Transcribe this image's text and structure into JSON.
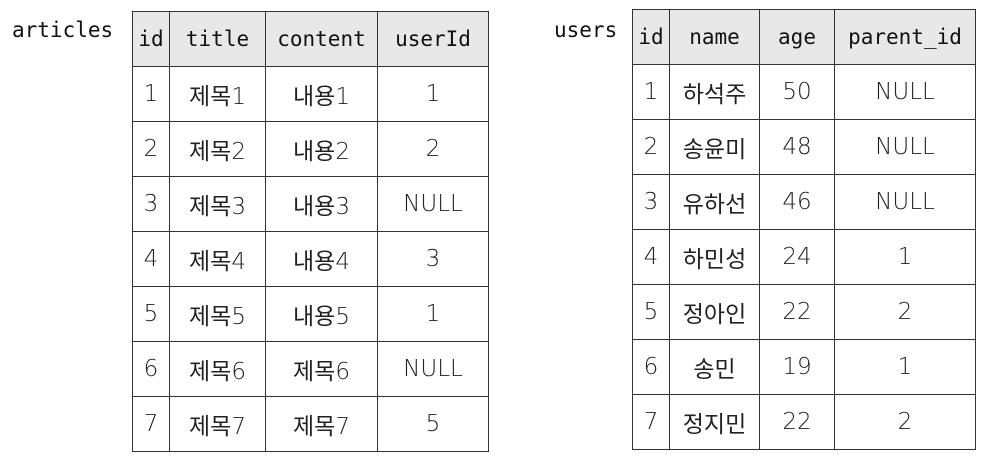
{
  "articles": {
    "name": "articles",
    "columns": [
      "id",
      "title",
      "content",
      "userId"
    ],
    "rows": [
      [
        "1",
        "제목1",
        "내용1",
        "1"
      ],
      [
        "2",
        "제목2",
        "내용2",
        "2"
      ],
      [
        "3",
        "제목3",
        "내용3",
        "NULL"
      ],
      [
        "4",
        "제목4",
        "내용4",
        "3"
      ],
      [
        "5",
        "제목5",
        "내용5",
        "1"
      ],
      [
        "6",
        "제목6",
        "제목6",
        "NULL"
      ],
      [
        "7",
        "제목7",
        "제목7",
        "5"
      ]
    ]
  },
  "users": {
    "name": "users",
    "columns": [
      "id",
      "name",
      "age",
      "parent_id"
    ],
    "rows": [
      [
        "1",
        "하석주",
        "50",
        "NULL"
      ],
      [
        "2",
        "송윤미",
        "48",
        "NULL"
      ],
      [
        "3",
        "유하선",
        "46",
        "NULL"
      ],
      [
        "4",
        "하민성",
        "24",
        "1"
      ],
      [
        "5",
        "정아인",
        "22",
        "2"
      ],
      [
        "6",
        "송민",
        "19",
        "1"
      ],
      [
        "7",
        "정지민",
        "22",
        "2"
      ]
    ]
  }
}
